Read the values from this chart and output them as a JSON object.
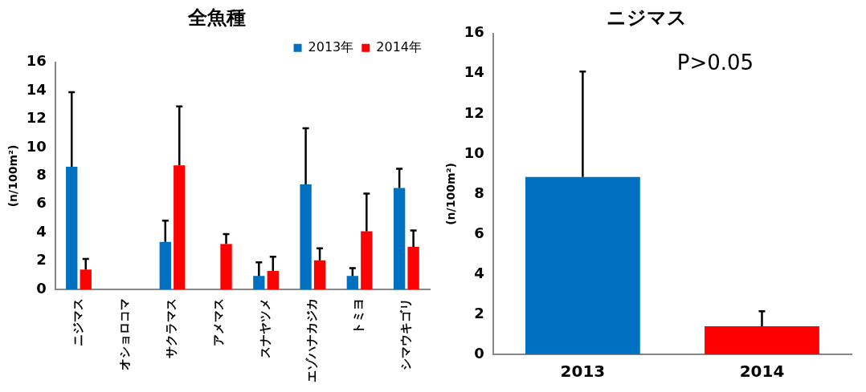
{
  "chart_data": [
    {
      "type": "bar",
      "title": "全魚種",
      "ylabel": "(n/100m²)",
      "categories": [
        "ニジマス",
        "オショロコマ",
        "サクラマス",
        "アメマス",
        "スナヤツメ",
        "エゾハナカジカ",
        "トミヨ",
        "シマウキゴリ"
      ],
      "series": [
        {
          "name": "2013年",
          "color": "#0070c0",
          "values": [
            8.65,
            0,
            3.35,
            0,
            0.95,
            7.4,
            0.95,
            7.15
          ],
          "errors": [
            [
              8.65,
              13.9
            ],
            null,
            [
              3.35,
              4.85
            ],
            null,
            [
              0.95,
              1.9
            ],
            [
              7.4,
              11.35
            ],
            [
              0.95,
              1.5
            ],
            [
              7.15,
              8.5
            ]
          ]
        },
        {
          "name": "2014年",
          "color": "#ff0000",
          "values": [
            1.4,
            0,
            8.75,
            3.2,
            1.3,
            2.05,
            4.1,
            3.0
          ],
          "errors": [
            [
              1.4,
              2.15
            ],
            null,
            [
              8.75,
              12.9
            ],
            [
              3.2,
              3.9
            ],
            [
              1.3,
              2.3
            ],
            [
              2.05,
              2.9
            ],
            [
              4.1,
              6.75
            ],
            [
              3.0,
              4.15
            ]
          ]
        }
      ],
      "ylim": [
        0,
        16
      ],
      "yticks": [
        0,
        2,
        4,
        6,
        8,
        10,
        12,
        14,
        16
      ],
      "grid": false,
      "legend": "top right"
    },
    {
      "type": "bar",
      "title": "ニジマス",
      "ylabel": "(n/100m²)",
      "categories": [
        "2013",
        "2014"
      ],
      "values": [
        8.85,
        1.4
      ],
      "colors": [
        "#0070c0",
        "#ff0000"
      ],
      "errors": [
        [
          8.85,
          14.1
        ],
        [
          1.4,
          2.15
        ]
      ],
      "ylim": [
        0,
        16
      ],
      "yticks": [
        0,
        2,
        4,
        6,
        8,
        10,
        12,
        14,
        16
      ],
      "grid": false,
      "legend": false,
      "annotations": [
        "P>0.05"
      ]
    }
  ]
}
